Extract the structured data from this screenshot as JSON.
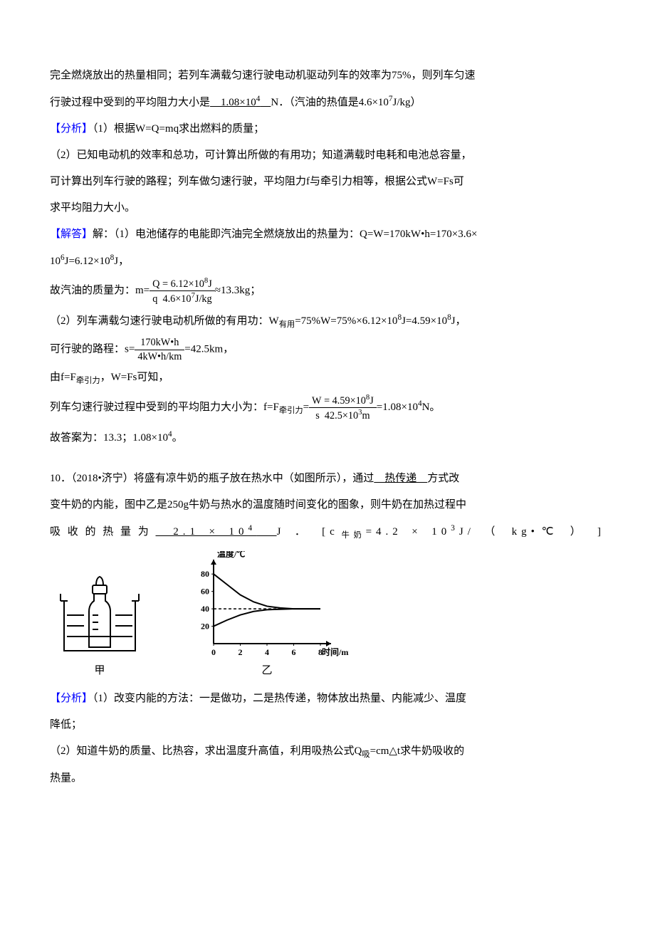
{
  "p1": {
    "t1": "完全燃烧放出的热量相同；若列车满载匀速行驶电动机驱动列车的效率为75%，则列车匀速",
    "t2a": "行驶过程中受到的平均阻力大小是",
    "blank1": "　1.08×10",
    "blank1_sup": "4",
    "blank1_tail": "　",
    "t2b": "N．（汽油的热值是4.6×10",
    "t2b_sup": "7",
    "t2c": "J/kg）"
  },
  "analysis1": {
    "label": "【分析】",
    "l1": "（1）根据W=Q=mq求出燃料的质量；",
    "l2": "（2）已知电动机的效率和总功，可计算出所做的有用功；知道满载时电耗和电池总容量，",
    "l3": "可计算出列车行驶的路程；列车做匀速行驶，平均阻力f与牵引力相等，根据公式W=Fs可",
    "l4": "求平均阻力大小。"
  },
  "solve1": {
    "label": "【解答】",
    "l1a": "解：（1）电池储存的电能即汽油完全燃烧放出的热量为：Q=W=170kW•h=170×3.6×",
    "l1b_a": "10",
    "l1b_sup": "6",
    "l1b_b": "J=6.12×10",
    "l1b_sup2": "8",
    "l1b_c": "J，",
    "l2a": "故汽油的质量为：m=",
    "frac1_num_a": "Q",
    "frac1_num_b": "6.12×10",
    "frac1_num_sup": "8",
    "frac1_num_c": "J",
    "frac1_den_a": "q",
    "frac1_den_b": "4.6×10",
    "frac1_den_sup": "7",
    "frac1_den_c": "J/kg",
    "l2b": "≈13.3kg；",
    "l3a": "（2）列车满载匀速行驶电动机所做的有用功：W",
    "l3_sub": "有用",
    "l3b": "=75%W=75%×6.12×10",
    "l3b_sup": "8",
    "l3c": "J=4.59×10",
    "l3c_sup": "8",
    "l3d": "J，",
    "l4a": "可行驶的路程：s=",
    "frac2_num": "170kW•h",
    "frac2_den": "4kW•h/km",
    "l4b": "=42.5km，",
    "l5a": "由f=F",
    "l5_sub": "牵引力",
    "l5b": "，W=Fs可知，",
    "l6a": "列车匀速行驶过程中受到的平均阻力大小为：f=F",
    "l6_sub": "牵引力",
    "l6b": "=",
    "frac3_num_a": "W",
    "frac3_num_b": "4.59×10",
    "frac3_num_sup": "8",
    "frac3_num_c": "J",
    "frac3_den_a": "s",
    "frac3_den_b": "42.5×10",
    "frac3_den_sup": "3",
    "frac3_den_c": "m",
    "l6c": "=1.08×10",
    "l6c_sup": "4",
    "l6d": "N。",
    "l7a": "故答案为：13.3；1.08×10",
    "l7_sup": "4",
    "l7b": "。"
  },
  "q10": {
    "head": "10．（2018•济宁）将盛有凉牛奶的瓶子放在热水中（如图所示），通过",
    "blank1": "　热传递　",
    "t1": "方式改",
    "t2": "变牛奶的内能，图中乙是250g牛奶与热水的温度随时间变化的图象，则牛奶在加热过程中",
    "t3a": "吸收的热量为",
    "blank2": "　2.1 × 10",
    "blank2_sup": "4",
    "blank2_tail": "　",
    "t3b": "J ． [c",
    "t3_sub": "牛奶",
    "t3c": "=4.2 × 10",
    "t3c_sup": "3",
    "t3d": "J/ （ kg•℃ ） ]"
  },
  "chart": {
    "title": "温度/℃",
    "yticks": [
      "20",
      "40",
      "60",
      "80"
    ],
    "xticks": [
      "0",
      "2",
      "4",
      "6",
      "8"
    ],
    "xlabel": "时间/min",
    "curves": {
      "hot_water": {
        "points": [
          [
            0,
            80
          ],
          [
            1,
            68
          ],
          [
            2,
            56
          ],
          [
            3,
            48
          ],
          [
            4,
            43
          ],
          [
            5,
            41
          ],
          [
            6,
            40
          ],
          [
            8,
            40
          ]
        ],
        "color": "#000"
      },
      "milk": {
        "points": [
          [
            0,
            20
          ],
          [
            1,
            27
          ],
          [
            2,
            33
          ],
          [
            3,
            37
          ],
          [
            4,
            39
          ],
          [
            5,
            39.5
          ],
          [
            6,
            40
          ],
          [
            8,
            40
          ]
        ],
        "color": "#000"
      }
    },
    "dash_y": 40,
    "axis_color": "#000",
    "background": "#ffffff",
    "font_size": 12
  },
  "captions": {
    "left": "甲",
    "right": "乙"
  },
  "analysis2": {
    "label": "【分析】",
    "l1": "（1）改变内能的方法：一是做功，二是热传递，物体放出热量、内能减少、温度",
    "l2": "降低；",
    "l3": "（2）知道牛奶的质量、比热容，求出温度升高值，利用吸热公式Q",
    "l3_sub": "吸",
    "l3b": "=cm△t求牛奶吸收的",
    "l4": "热量。"
  },
  "figure_colors": {
    "stroke": "#000000",
    "dash": "#000000"
  }
}
